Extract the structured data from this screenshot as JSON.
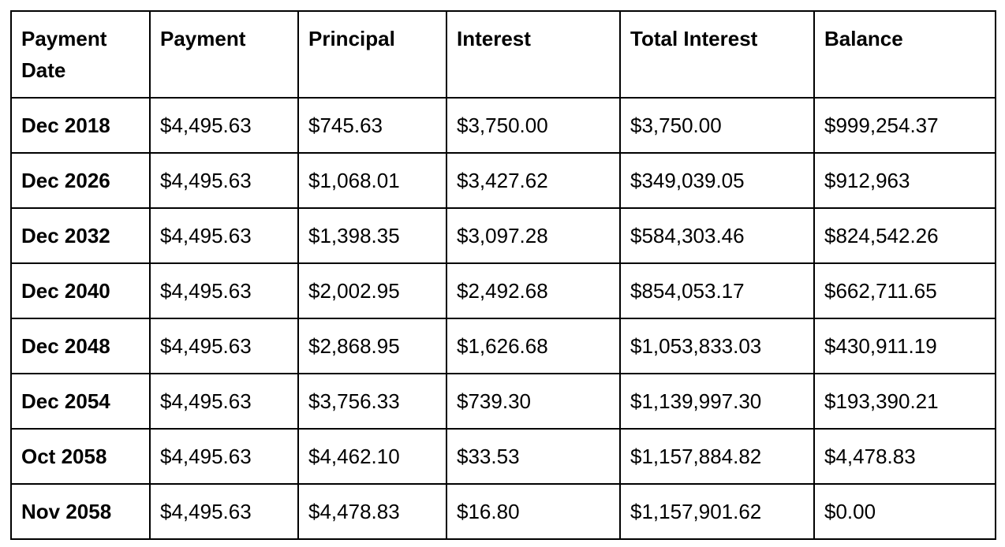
{
  "table": {
    "headers": [
      "Payment Date",
      "Payment",
      "Principal",
      "Interest",
      "Total Interest",
      "Balance"
    ],
    "rows": [
      [
        "Dec 2018",
        "$4,495.63",
        "$745.63",
        "$3,750.00",
        "$3,750.00",
        "$999,254.37"
      ],
      [
        "Dec 2026",
        "$4,495.63",
        "$1,068.01",
        "$3,427.62",
        "$349,039.05",
        "$912,963"
      ],
      [
        "Dec 2032",
        "$4,495.63",
        "$1,398.35",
        "$3,097.28",
        "$584,303.46",
        "$824,542.26"
      ],
      [
        "Dec 2040",
        "$4,495.63",
        "$2,002.95",
        "$2,492.68",
        "$854,053.17",
        "$662,711.65"
      ],
      [
        "Dec 2048",
        "$4,495.63",
        "$2,868.95",
        "$1,626.68",
        "$1,053,833.03",
        "$430,911.19"
      ],
      [
        "Dec 2054",
        "$4,495.63",
        "$3,756.33",
        "$739.30",
        "$1,139,997.30",
        "$193,390.21"
      ],
      [
        "Oct 2058",
        "$4,495.63",
        "$4,462.10",
        "$33.53",
        "$1,157,884.82",
        "$4,478.83"
      ],
      [
        "Nov 2058",
        "$4,495.63",
        "$4,478.83",
        "$16.80",
        "$1,157,901.62",
        "$0.00"
      ]
    ]
  }
}
